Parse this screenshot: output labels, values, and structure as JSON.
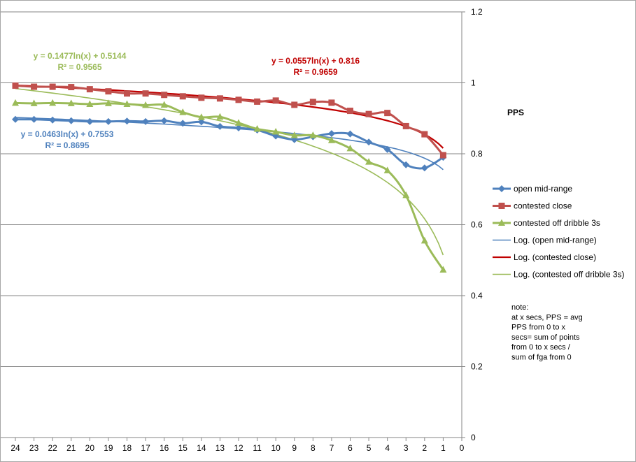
{
  "chart_data": {
    "type": "line",
    "x": [
      24,
      23,
      22,
      21,
      20,
      19,
      18,
      17,
      16,
      15,
      14,
      13,
      12,
      11,
      10,
      9,
      8,
      7,
      6,
      5,
      4,
      3,
      2,
      1
    ],
    "x_ticks": [
      24,
      23,
      22,
      21,
      20,
      19,
      18,
      17,
      16,
      15,
      14,
      13,
      12,
      11,
      10,
      9,
      8,
      7,
      6,
      5,
      4,
      3,
      2,
      1,
      0
    ],
    "xlim": [
      0,
      24
    ],
    "x_reversed": true,
    "ylim": [
      0,
      1.2
    ],
    "y_ticks": [
      "0",
      "0.2",
      "0.4",
      "0.6",
      "0.8",
      "1",
      "1.2"
    ],
    "y_axis_side": "right",
    "ylabel": "PPS",
    "grid": "horizontal",
    "series": [
      {
        "name": "open mid-range",
        "color": "#4f81bd",
        "marker": "diamond",
        "values": [
          0.897,
          0.897,
          0.895,
          0.893,
          0.891,
          0.891,
          0.892,
          0.891,
          0.893,
          0.886,
          0.89,
          0.877,
          0.873,
          0.867,
          0.85,
          0.84,
          0.848,
          0.857,
          0.856,
          0.833,
          0.812,
          0.769,
          0.76,
          0.79
        ]
      },
      {
        "name": "contested close",
        "color": "#c0504d",
        "marker": "square",
        "values": [
          0.992,
          0.989,
          0.989,
          0.988,
          0.982,
          0.976,
          0.97,
          0.97,
          0.966,
          0.962,
          0.958,
          0.956,
          0.952,
          0.947,
          0.95,
          0.938,
          0.946,
          0.944,
          0.921,
          0.912,
          0.915,
          0.878,
          0.855,
          0.796
        ]
      },
      {
        "name": "contested off dribble 3s",
        "color": "#9bbb59",
        "marker": "triangle",
        "values": [
          0.943,
          0.942,
          0.943,
          0.942,
          0.94,
          0.942,
          0.94,
          0.937,
          0.938,
          0.917,
          0.903,
          0.904,
          0.887,
          0.87,
          0.862,
          0.852,
          0.852,
          0.838,
          0.815,
          0.777,
          0.753,
          0.683,
          0.555,
          0.473
        ]
      }
    ],
    "trendlines": [
      {
        "name": "Log. (open mid-range)",
        "color": "#4f81bd",
        "a": 0.0463,
        "b": 0.7553
      },
      {
        "name": "Log. (contested close)",
        "color": "#c00000",
        "a": 0.0557,
        "b": 0.816
      },
      {
        "name": "Log. (contested off dribble 3s)",
        "color": "#9bbb59",
        "a": 0.1477,
        "b": 0.5144
      }
    ],
    "equations": [
      {
        "line1": "y = 0.1477ln(x) + 0.5144",
        "line2": "R² = 0.9565",
        "color": "#9bbb59"
      },
      {
        "line1": "y = 0.0557ln(x) + 0.816",
        "line2": "R² = 0.9659",
        "color": "#c00000"
      },
      {
        "line1": "y = 0.0463ln(x) + 0.7553",
        "line2": "R² = 0.8695",
        "color": "#4f81bd"
      }
    ],
    "legend_placement": "right",
    "note": [
      "note:",
      "at x secs, PPS = avg",
      "PPS from 0 to x",
      "secs= sum of points",
      "from 0 to x secs /",
      "sum of fga from 0"
    ]
  }
}
